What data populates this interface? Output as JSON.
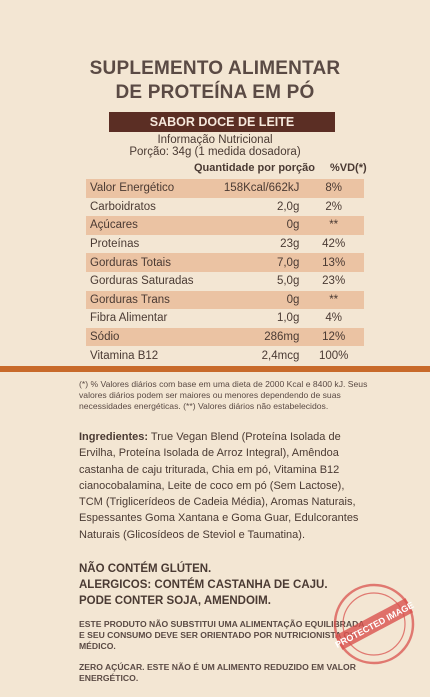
{
  "title": {
    "line1": "SUPLEMENTO ALIMENTAR",
    "line2": "DE PROTEÍNA EM PÓ"
  },
  "flavor": "SABOR DOCE DE LEITE",
  "info": {
    "heading": "Informação Nutricional",
    "portion": "Porção: 34g (1 medida dosadora)"
  },
  "table": {
    "col_qty": "Quantidade por porção",
    "col_vd": "%VD(*)",
    "rows": [
      {
        "name": "Valor Energético",
        "qty": "158Kcal/662kJ",
        "vd": "8%"
      },
      {
        "name": "Carboidratos",
        "qty": "2,0g",
        "vd": "2%"
      },
      {
        "name": "Açúcares",
        "qty": "0g",
        "vd": "**"
      },
      {
        "name": "Proteínas",
        "qty": "23g",
        "vd": "42%"
      },
      {
        "name": "Gorduras Totais",
        "qty": "7,0g",
        "vd": "13%"
      },
      {
        "name": "Gorduras Saturadas",
        "qty": "5,0g",
        "vd": "23%"
      },
      {
        "name": "Gorduras Trans",
        "qty": "0g",
        "vd": "**"
      },
      {
        "name": "Fibra Alimentar",
        "qty": "1,0g",
        "vd": "4%"
      },
      {
        "name": "Sódio",
        "qty": "286mg",
        "vd": "12%"
      },
      {
        "name": "Vitamina B12",
        "qty": "2,4mcg",
        "vd": "100%"
      }
    ]
  },
  "footnote": "(*) % Valores diários com base em uma dieta de 2000 Kcal e 8400 kJ. Seus valores diários podem ser maiores ou menores dependendo de suas necessidades energéticas. (**) Valores diários não estabelecidos.",
  "ingredients": {
    "label": "Ingredientes:",
    "text": " True Vegan Blend (Proteína Isolada de Ervilha, Proteína Isolada de Arroz Integral), Amêndoa castanha de caju triturada, Chia em pó, Vitamina B12 cianocobalamina, Leite de coco em pó (Sem Lactose), TCM (Triglicerídeos de Cadeia Média), Aromas Naturais, Espessantes Goma Xantana e Goma Guar, Edulcorantes Naturais (Glicosídeos de Steviol e Taumatina)."
  },
  "warnings": {
    "gluten": "NÃO CONTÉM GLÚTEN.",
    "allergens": "ALERGICOS: CONTÉM CASTANHA DE CAJU.",
    "traces": "PODE CONTER SOJA, AMENDOIM."
  },
  "notice": "ESTE PRODUTO NÃO SUBSTITUI UMA ALIMENTAÇÃO EQUILIBRADA E SEU CONSUMO DEVE SER ORIENTADO POR NUTRICIONISTA OU MÉDICO.",
  "sugar_notice": "ZERO AÇÚCAR. ESTE NÃO É UM ALIMENTO REDUZIDO EM VALOR ENERGÉTICO.",
  "stamp_text": "PROTECTED IMAGE",
  "colors": {
    "background": "#f3e6d3",
    "banner": "#5b2e24",
    "row_shade": "#ebc3a3",
    "stripe": "#c86a2a",
    "stamp": "#d9534f"
  }
}
